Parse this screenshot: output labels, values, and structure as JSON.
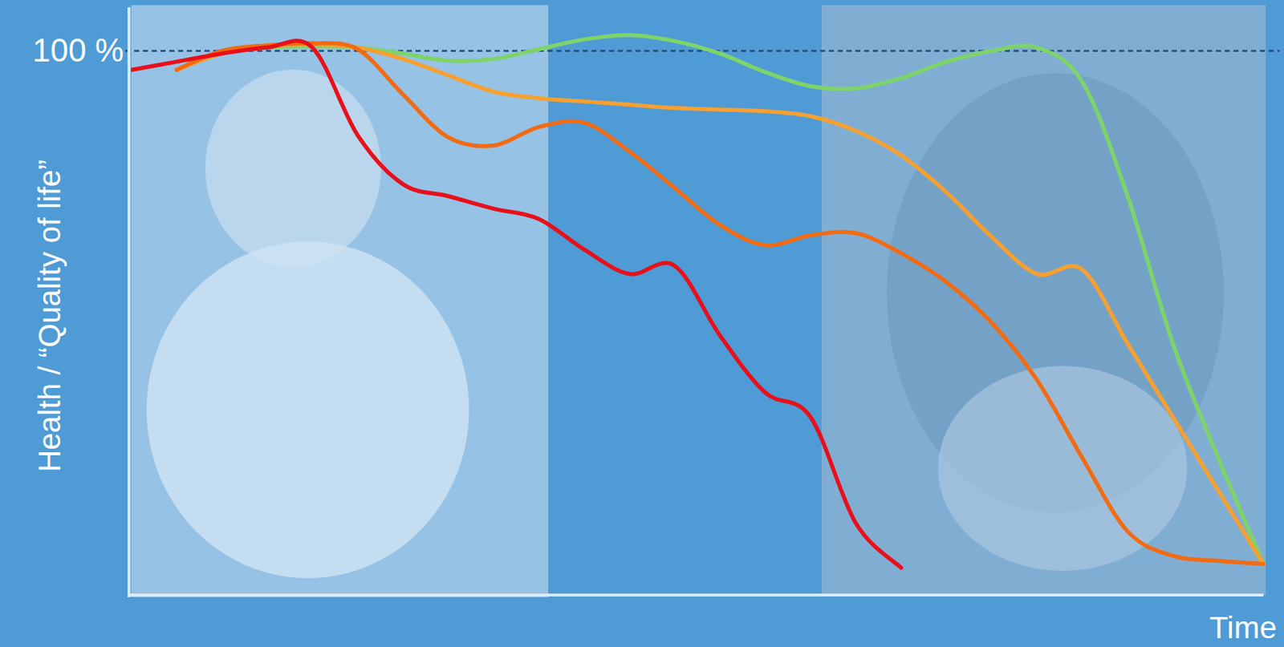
{
  "chart_data": {
    "type": "line",
    "y_label": "Health / “Quality of life”",
    "x_label": "Time",
    "x": [
      0,
      4,
      8,
      12,
      16,
      20,
      24,
      28,
      32,
      36,
      40,
      44,
      48,
      52,
      56,
      60,
      64,
      68,
      72,
      76,
      80,
      84,
      88,
      92,
      96,
      100
    ],
    "xlim": [
      0,
      100
    ],
    "ylim": [
      0,
      108
    ],
    "yticks": [
      {
        "value": 100,
        "label": "100 %"
      }
    ],
    "grid": true,
    "tick_labels": "y",
    "series": [
      {
        "color": "#7ed36a",
        "values": [
          null,
          96.5,
          99.5,
          100.6,
          100.8,
          100.6,
          99.5,
          98.2,
          98.5,
          100.3,
          102.1,
          102.9,
          101.8,
          99.5,
          96.1,
          93.5,
          93.1,
          95.0,
          98.0,
          100,
          100.6,
          94.3,
          73.3,
          46.2,
          25.2,
          5.7
        ]
      },
      {
        "color": "#f7a030",
        "values": [
          null,
          96.5,
          99.5,
          100.8,
          101.2,
          100.6,
          98.5,
          95.5,
          92.5,
          91.3,
          90.7,
          90.1,
          89.5,
          89.2,
          88.9,
          88.0,
          85.3,
          80.8,
          74.0,
          65.8,
          59.0,
          59.8,
          46.2,
          32.7,
          19.2,
          5.7
        ]
      },
      {
        "color": "#f26b12",
        "values": [
          null,
          96.5,
          100,
          101,
          101.4,
          100.3,
          92.0,
          84.1,
          82.6,
          86.0,
          86.8,
          81.5,
          74.8,
          68.0,
          64.3,
          66.1,
          66.5,
          62.8,
          57.5,
          50.0,
          39.5,
          25.2,
          11.7,
          7.2,
          6.3,
          5.7
        ]
      },
      {
        "color": "#e8101a",
        "values": [
          96.5,
          98.0,
          99.5,
          100.6,
          100.6,
          84.5,
          75.5,
          73.3,
          71.0,
          69.1,
          63.5,
          59.0,
          60.5,
          47.7,
          37.2,
          32.7,
          13.2,
          5.0,
          null,
          null,
          null,
          null,
          null,
          null,
          null,
          null
        ]
      }
    ]
  }
}
